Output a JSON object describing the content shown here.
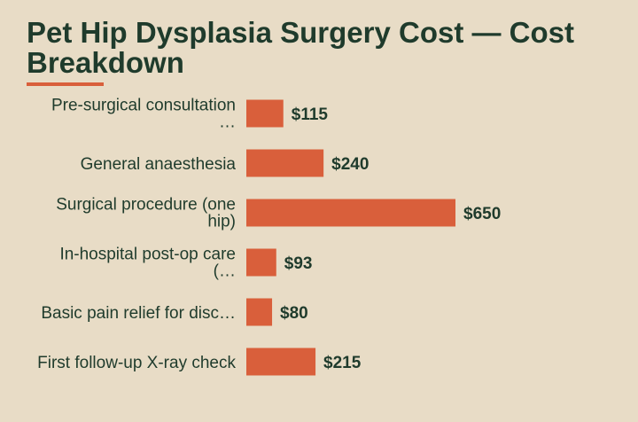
{
  "title": "Pet Hip Dysplasia Surgery Cost — Cost Breakdown",
  "colors": {
    "background": "#e8dcc6",
    "bar": "#d95f3b",
    "text": "#1f3b2c"
  },
  "chart_data": {
    "type": "bar",
    "orientation": "horizontal",
    "categories": [
      [
        "Pre-surgical consultation",
        "…"
      ],
      [
        "General anaesthesia"
      ],
      [
        "Surgical procedure (one",
        "hip)"
      ],
      [
        "In-hospital post-op care",
        "(…"
      ],
      [
        "Basic pain relief for disc…"
      ],
      [
        "First follow-up X-ray check"
      ]
    ],
    "values": [
      115,
      240,
      650,
      93,
      80,
      215
    ],
    "value_labels": [
      "$115",
      "$240",
      "$650",
      "$93",
      "$80",
      "$215"
    ],
    "xlim": [
      0,
      650
    ],
    "grid": false,
    "legend": "none"
  }
}
